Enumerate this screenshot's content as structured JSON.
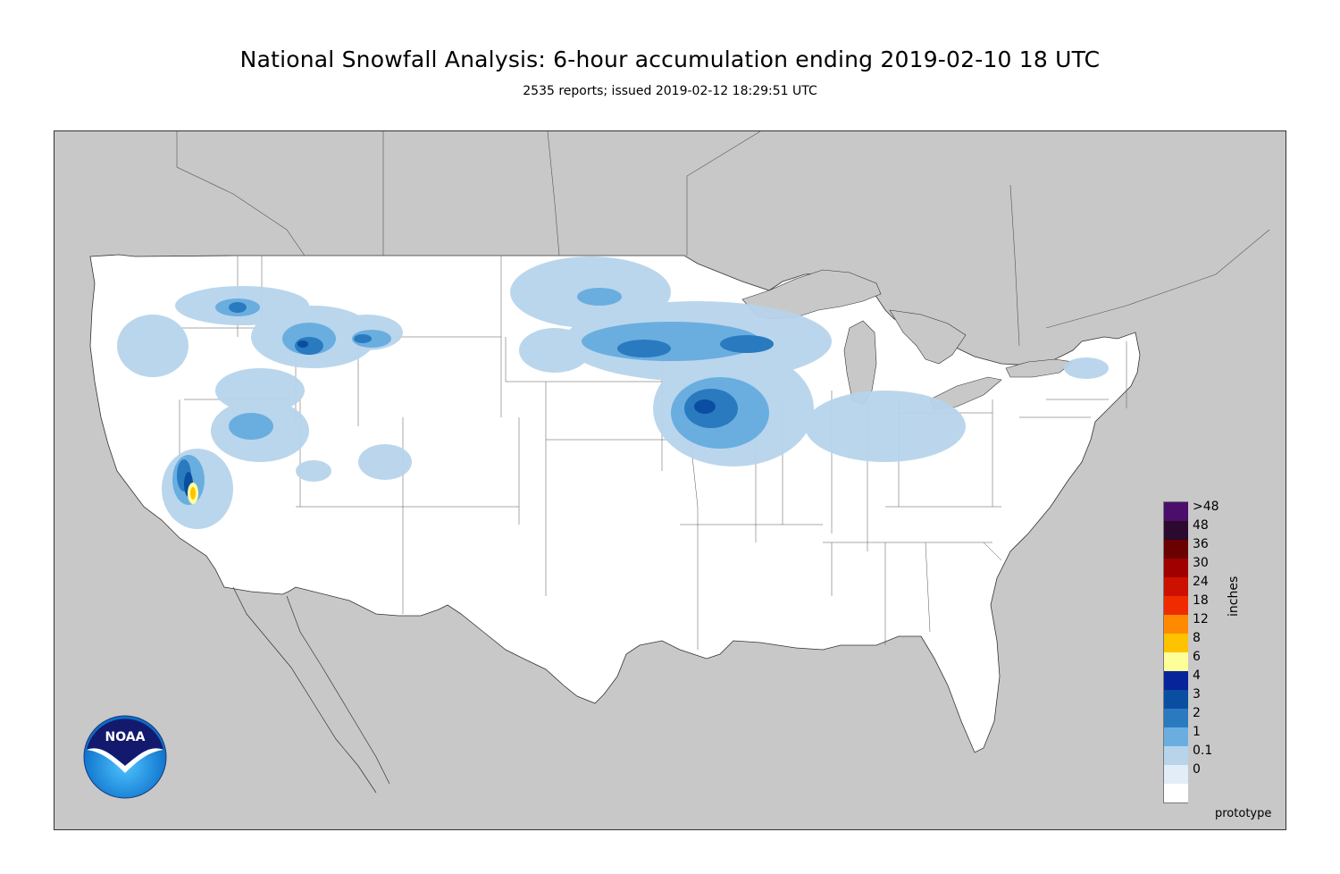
{
  "header": {
    "title": "National Snowfall Analysis: 6-hour accumulation ending 2019-02-10 18 UTC",
    "subtitle": "2535 reports; issued 2019-02-12 18:29:51 UTC"
  },
  "legend": {
    "units": "inches",
    "bins": [
      {
        "label": ">48",
        "color": "#4b0f6b"
      },
      {
        "label": "48",
        "color": "#2a0a2e"
      },
      {
        "label": "36",
        "color": "#6b0000"
      },
      {
        "label": "30",
        "color": "#a00000"
      },
      {
        "label": "24",
        "color": "#cc1100"
      },
      {
        "label": "18",
        "color": "#ef2b00"
      },
      {
        "label": "12",
        "color": "#ff8a00"
      },
      {
        "label": "8",
        "color": "#ffc200"
      },
      {
        "label": "6",
        "color": "#ffff99"
      },
      {
        "label": "4",
        "color": "#08249b"
      },
      {
        "label": "3",
        "color": "#0a4ea2"
      },
      {
        "label": "2",
        "color": "#2a7ac0"
      },
      {
        "label": "1",
        "color": "#6aaee0"
      },
      {
        "label": "0.1",
        "color": "#b7d4eb"
      },
      {
        "label": "0",
        "color": "#e2edf7"
      }
    ],
    "zero_color": "#ffffff"
  },
  "footer": {
    "note": "prototype"
  },
  "logo": {
    "text": "NOAA"
  },
  "colors": {
    "ocean_background": "#c8c8c8",
    "land": "#ffffff",
    "border_lines": "#333333"
  }
}
